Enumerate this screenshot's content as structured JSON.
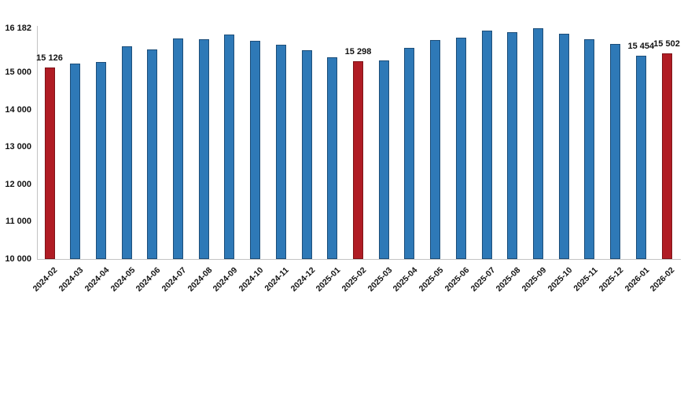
{
  "chart_data": {
    "type": "bar",
    "title": "",
    "xlabel": "",
    "ylabel": "",
    "categories": [
      "2024-02",
      "2024-03",
      "2024-04",
      "2024-05",
      "2024-06",
      "2024-07",
      "2024-08",
      "2024-09",
      "2024-10",
      "2024-11",
      "2024-12",
      "2025-01",
      "2025-02",
      "2025-03",
      "2025-04",
      "2025-05",
      "2025-06",
      "2025-07",
      "2025-08",
      "2025-09",
      "2025-10",
      "2025-11",
      "2025-12",
      "2026-01",
      "2026-02"
    ],
    "values": [
      15126,
      15230,
      15280,
      15690,
      15620,
      15900,
      15890,
      16010,
      15850,
      15730,
      15600,
      15410,
      15298,
      15320,
      15655,
      15865,
      15920,
      16110,
      16080,
      16182,
      16030,
      15880,
      15760,
      15454,
      15502
    ],
    "bar_labels": [
      "15 126",
      "",
      "",
      "",
      "",
      "",
      "",
      "",
      "",
      "",
      "",
      "",
      "15 298",
      "",
      "",
      "",
      "",
      "",
      "",
      "",
      "",
      "",
      "",
      "15 454",
      "15 502"
    ],
    "highlighted_indices": [
      0,
      12,
      24
    ],
    "ylim": [
      10000,
      16182
    ],
    "y_tick_values": [
      10000,
      11000,
      12000,
      13000,
      14000,
      15000,
      16182
    ],
    "y_tick_labels": [
      "10 000",
      "11 000",
      "12 000",
      "13 000",
      "14 000",
      "15 000",
      "16 182"
    ],
    "grid": false,
    "legend": null,
    "colors": {
      "bar_fill": "#2e79b7",
      "bar_border": "#1d4e79",
      "highlight_fill": "#b01c24",
      "highlight_border": "#7e1418",
      "axis_line": "#c3c3c3",
      "text": "#111111"
    }
  }
}
